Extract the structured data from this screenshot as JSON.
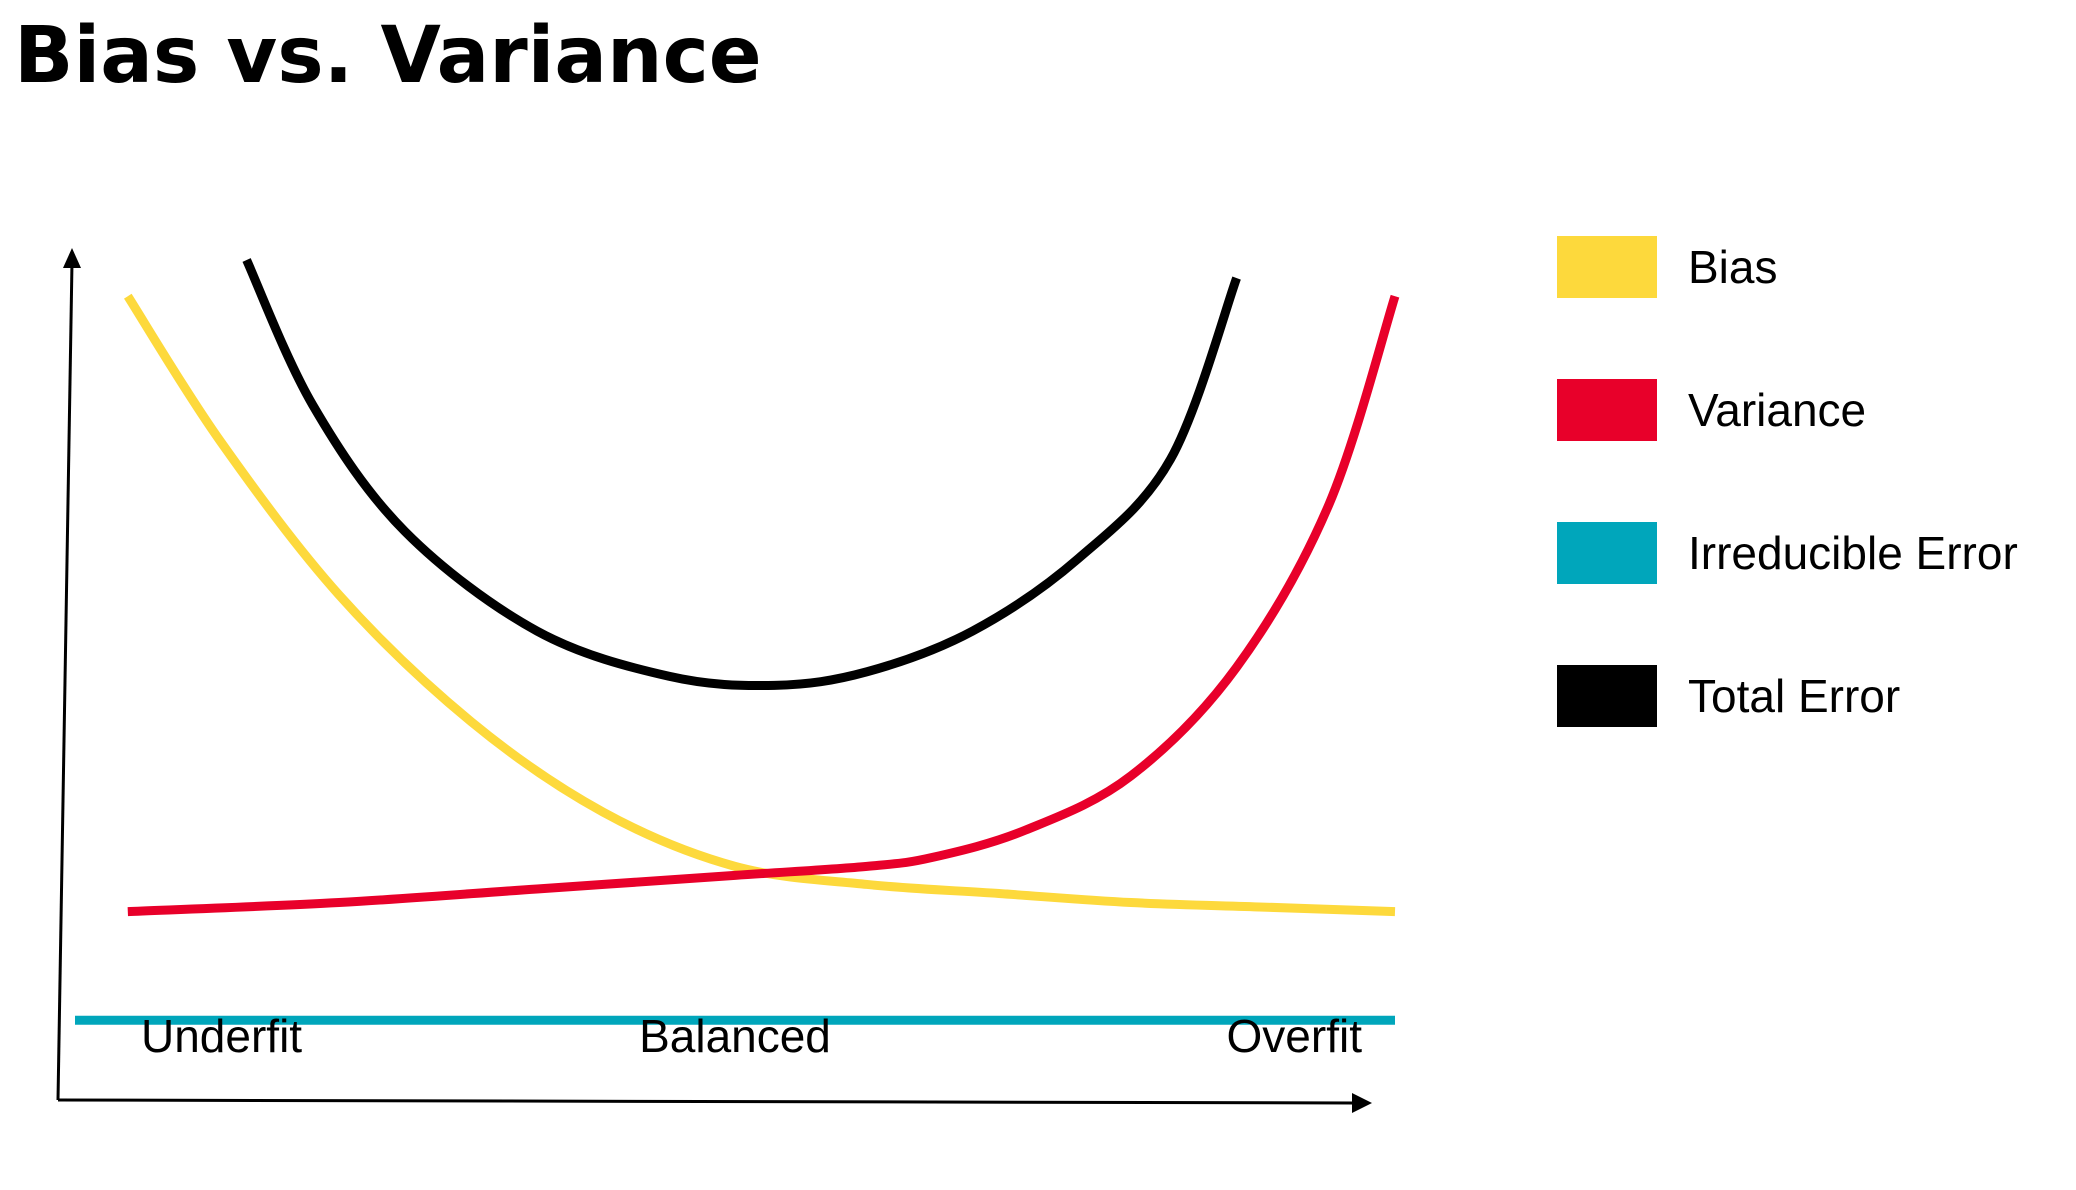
{
  "chart_data": {
    "type": "line",
    "title": "Bias vs. Variance",
    "xlabel": "",
    "ylabel": "",
    "categories": [
      "Underfit",
      "Balanced",
      "Overfit"
    ],
    "xlim": [
      0,
      1
    ],
    "ylim": [
      0,
      1
    ],
    "grid": false,
    "legend_position": "right",
    "series": [
      {
        "name": "Bias",
        "color": "#FDD93C",
        "points": [
          [
            0.04,
            0.96
          ],
          [
            0.11,
            0.8
          ],
          [
            0.2,
            0.63
          ],
          [
            0.3,
            0.49
          ],
          [
            0.4,
            0.39
          ],
          [
            0.5,
            0.33
          ],
          [
            0.6,
            0.31
          ],
          [
            0.7,
            0.3
          ],
          [
            0.8,
            0.29
          ],
          [
            0.9,
            0.285
          ],
          [
            1.0,
            0.28
          ]
        ]
      },
      {
        "name": "Variance",
        "color": "#E8002A",
        "points": [
          [
            0.04,
            0.28
          ],
          [
            0.2,
            0.29
          ],
          [
            0.35,
            0.305
          ],
          [
            0.5,
            0.32
          ],
          [
            0.6,
            0.33
          ],
          [
            0.65,
            0.34
          ],
          [
            0.72,
            0.37
          ],
          [
            0.8,
            0.43
          ],
          [
            0.88,
            0.55
          ],
          [
            0.95,
            0.73
          ],
          [
            1.0,
            0.96
          ]
        ]
      },
      {
        "name": "Irreducible Error",
        "color": "#00A6BB",
        "points": [
          [
            0.0,
            0.16
          ],
          [
            1.0,
            0.16
          ]
        ]
      },
      {
        "name": "Total Error",
        "color": "#000000",
        "points": [
          [
            0.13,
            1.0
          ],
          [
            0.18,
            0.84
          ],
          [
            0.25,
            0.7
          ],
          [
            0.35,
            0.59
          ],
          [
            0.45,
            0.54
          ],
          [
            0.53,
            0.53
          ],
          [
            0.6,
            0.545
          ],
          [
            0.68,
            0.59
          ],
          [
            0.76,
            0.67
          ],
          [
            0.83,
            0.78
          ],
          [
            0.88,
            0.98
          ]
        ]
      }
    ]
  }
}
